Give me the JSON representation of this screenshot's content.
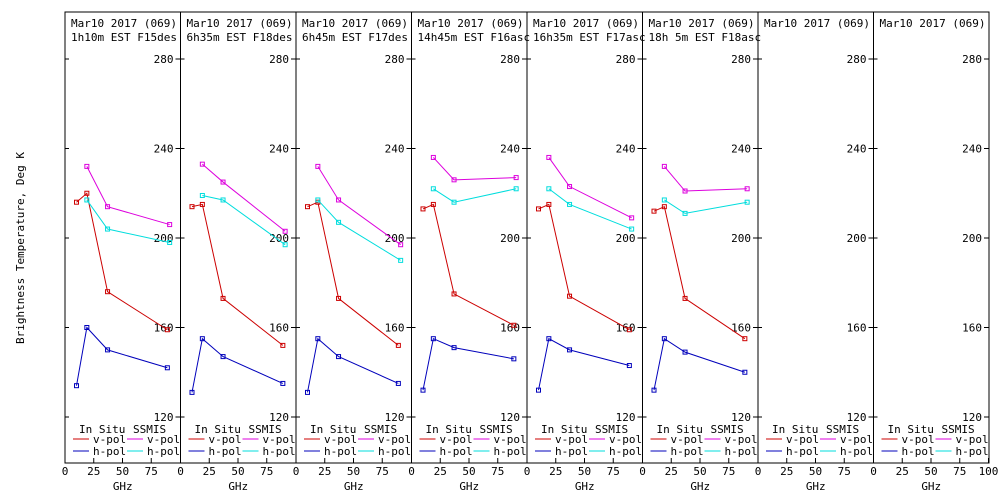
{
  "figure": {
    "ylabel": "Brightness Temperature, Deg K",
    "xlabel": "GHz"
  },
  "chart_data": {
    "type": "line",
    "ylabel": "Brightness Temperature, Deg K",
    "xlabel": "GHz",
    "xlim": [
      0,
      100
    ],
    "ylim": [
      115,
      285
    ],
    "yticks": [
      120,
      160,
      200,
      240,
      280
    ],
    "xticks": [
      0,
      25,
      50,
      75,
      100
    ],
    "legend": {
      "in_situ_title": "In Situ",
      "ssmis_title": "SSMIS",
      "entries": [
        {
          "group": "in_situ",
          "label": "v-pol",
          "color": "#cc0000"
        },
        {
          "group": "ssmis",
          "label": "v-pol",
          "color": "#dd00dd"
        },
        {
          "group": "in_situ",
          "label": "h-pol",
          "color": "#0000bb"
        },
        {
          "group": "ssmis",
          "label": "h-pol",
          "color": "#00dddd"
        }
      ]
    },
    "panels": [
      {
        "title1": "Mar10 2017 (069)",
        "title2": "1h10m EST F15des",
        "series": [
          {
            "name": "insitu-v",
            "color": "#cc0000",
            "x": [
              10,
              19,
              37,
              89
            ],
            "y": [
              216,
              220,
              176,
              159
            ]
          },
          {
            "name": "insitu-h",
            "color": "#0000bb",
            "x": [
              10,
              19,
              37,
              89
            ],
            "y": [
              134,
              160,
              150,
              142
            ]
          },
          {
            "name": "ssmis-v",
            "color": "#dd00dd",
            "x": [
              19,
              37,
              91
            ],
            "y": [
              232,
              214,
              206
            ]
          },
          {
            "name": "ssmis-h",
            "color": "#00dddd",
            "x": [
              19,
              37,
              91
            ],
            "y": [
              217,
              204,
              198
            ]
          }
        ]
      },
      {
        "title1": "Mar10 2017 (069)",
        "title2": "6h35m EST F18des",
        "series": [
          {
            "name": "insitu-v",
            "color": "#cc0000",
            "x": [
              10,
              19,
              37,
              89
            ],
            "y": [
              214,
              215,
              173,
              152
            ]
          },
          {
            "name": "insitu-h",
            "color": "#0000bb",
            "x": [
              10,
              19,
              37,
              89
            ],
            "y": [
              131,
              155,
              147,
              135
            ]
          },
          {
            "name": "ssmis-v",
            "color": "#dd00dd",
            "x": [
              19,
              37,
              91
            ],
            "y": [
              233,
              225,
              203
            ]
          },
          {
            "name": "ssmis-h",
            "color": "#00dddd",
            "x": [
              19,
              37,
              91
            ],
            "y": [
              219,
              217,
              197
            ]
          }
        ]
      },
      {
        "title1": "Mar10 2017 (069)",
        "title2": "6h45m EST F17des",
        "series": [
          {
            "name": "insitu-v",
            "color": "#cc0000",
            "x": [
              10,
              19,
              37,
              89
            ],
            "y": [
              214,
              216,
              173,
              152
            ]
          },
          {
            "name": "insitu-h",
            "color": "#0000bb",
            "x": [
              10,
              19,
              37,
              89
            ],
            "y": [
              131,
              155,
              147,
              135
            ]
          },
          {
            "name": "ssmis-v",
            "color": "#dd00dd",
            "x": [
              19,
              37,
              91
            ],
            "y": [
              232,
              217,
              197
            ]
          },
          {
            "name": "ssmis-h",
            "color": "#00dddd",
            "x": [
              19,
              37,
              91
            ],
            "y": [
              217,
              207,
              190
            ]
          }
        ]
      },
      {
        "title1": "Mar10 2017 (069)",
        "title2": "14h45m EST F16asc",
        "series": [
          {
            "name": "insitu-v",
            "color": "#cc0000",
            "x": [
              10,
              19,
              37,
              89
            ],
            "y": [
              213,
              215,
              175,
              161
            ]
          },
          {
            "name": "insitu-h",
            "color": "#0000bb",
            "x": [
              10,
              19,
              37,
              89
            ],
            "y": [
              132,
              155,
              151,
              146
            ]
          },
          {
            "name": "ssmis-v",
            "color": "#dd00dd",
            "x": [
              19,
              37,
              91
            ],
            "y": [
              236,
              226,
              227
            ]
          },
          {
            "name": "ssmis-h",
            "color": "#00dddd",
            "x": [
              19,
              37,
              91
            ],
            "y": [
              222,
              216,
              222
            ]
          }
        ]
      },
      {
        "title1": "Mar10 2017 (069)",
        "title2": "16h35m EST F17asc",
        "series": [
          {
            "name": "insitu-v",
            "color": "#cc0000",
            "x": [
              10,
              19,
              37,
              89
            ],
            "y": [
              213,
              215,
              174,
              159
            ]
          },
          {
            "name": "insitu-h",
            "color": "#0000bb",
            "x": [
              10,
              19,
              37,
              89
            ],
            "y": [
              132,
              155,
              150,
              143
            ]
          },
          {
            "name": "ssmis-v",
            "color": "#dd00dd",
            "x": [
              19,
              37,
              91
            ],
            "y": [
              236,
              223,
              209
            ]
          },
          {
            "name": "ssmis-h",
            "color": "#00dddd",
            "x": [
              19,
              37,
              91
            ],
            "y": [
              222,
              215,
              204
            ]
          }
        ]
      },
      {
        "title1": "Mar10 2017 (069)",
        "title2": "18h 5m EST F18asc",
        "series": [
          {
            "name": "insitu-v",
            "color": "#cc0000",
            "x": [
              10,
              19,
              37,
              89
            ],
            "y": [
              212,
              214,
              173,
              155
            ]
          },
          {
            "name": "insitu-h",
            "color": "#0000bb",
            "x": [
              10,
              19,
              37,
              89
            ],
            "y": [
              132,
              155,
              149,
              140
            ]
          },
          {
            "name": "ssmis-v",
            "color": "#dd00dd",
            "x": [
              19,
              37,
              91
            ],
            "y": [
              232,
              221,
              222
            ]
          },
          {
            "name": "ssmis-h",
            "color": "#00dddd",
            "x": [
              19,
              37,
              91
            ],
            "y": [
              217,
              211,
              216
            ]
          }
        ]
      },
      {
        "title1": "Mar10 2017 (069)",
        "title2": "",
        "series": []
      },
      {
        "title1": "Mar10 2017 (069)",
        "title2": "",
        "series": []
      }
    ]
  }
}
